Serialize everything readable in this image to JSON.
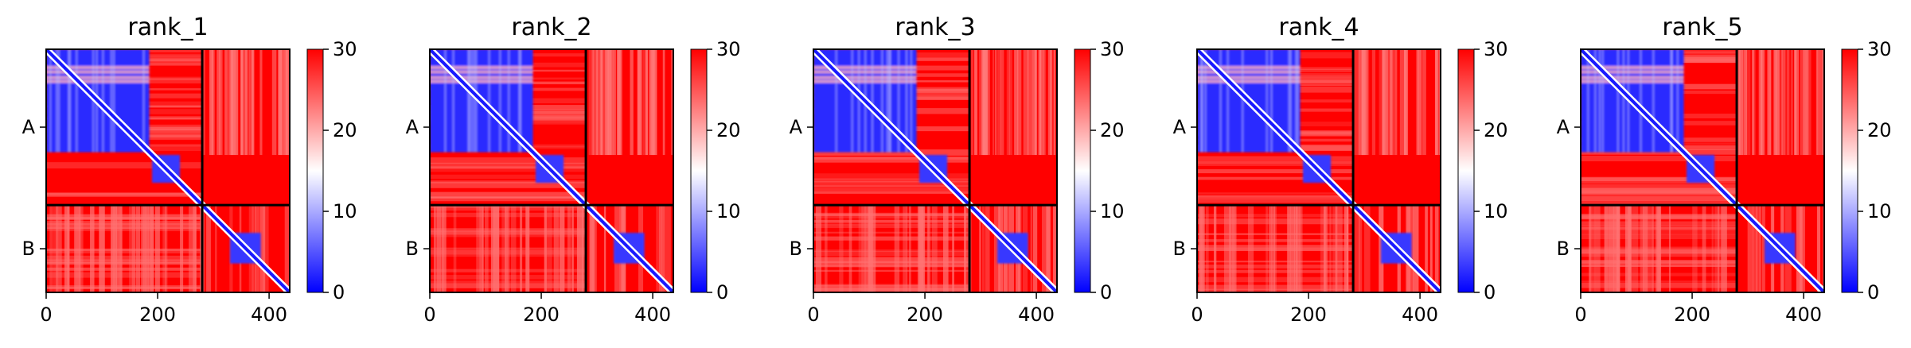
{
  "chart_data": {
    "type": "heatmap",
    "panels": [
      {
        "title": "rank_1"
      },
      {
        "title": "rank_2"
      },
      {
        "title": "rank_3"
      },
      {
        "title": "rank_4"
      },
      {
        "title": "rank_5"
      }
    ],
    "xlim": [
      0,
      437
    ],
    "x_ticks": [
      0,
      200,
      400
    ],
    "chain_boundary": 280,
    "y_tick_labels": [
      "A",
      "B"
    ],
    "colorbar": {
      "min": 0,
      "max": 30,
      "ticks": [
        0,
        10,
        20,
        30
      ],
      "colormap": [
        "#0000ff",
        "#ffffff",
        "#ff0000"
      ]
    },
    "blocks": [
      {
        "range": [
          0,
          185
        ],
        "value": 2
      },
      {
        "range": [
          190,
          240
        ],
        "value": 4
      },
      {
        "range": [
          330,
          385
        ],
        "value": 4
      }
    ],
    "grid": false
  }
}
